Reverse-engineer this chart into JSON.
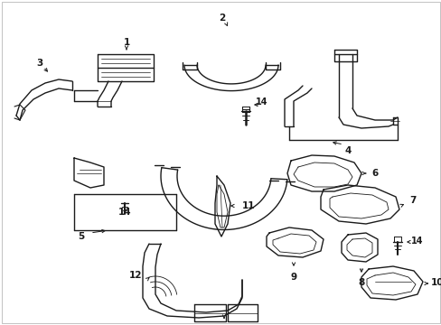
{
  "background_color": "#ffffff",
  "line_color": "#1a1a1a",
  "line_width": 1.0,
  "label_fontsize": 7.5,
  "figure_width": 4.89,
  "figure_height": 3.6,
  "dpi": 100,
  "border_color": "#cccccc"
}
